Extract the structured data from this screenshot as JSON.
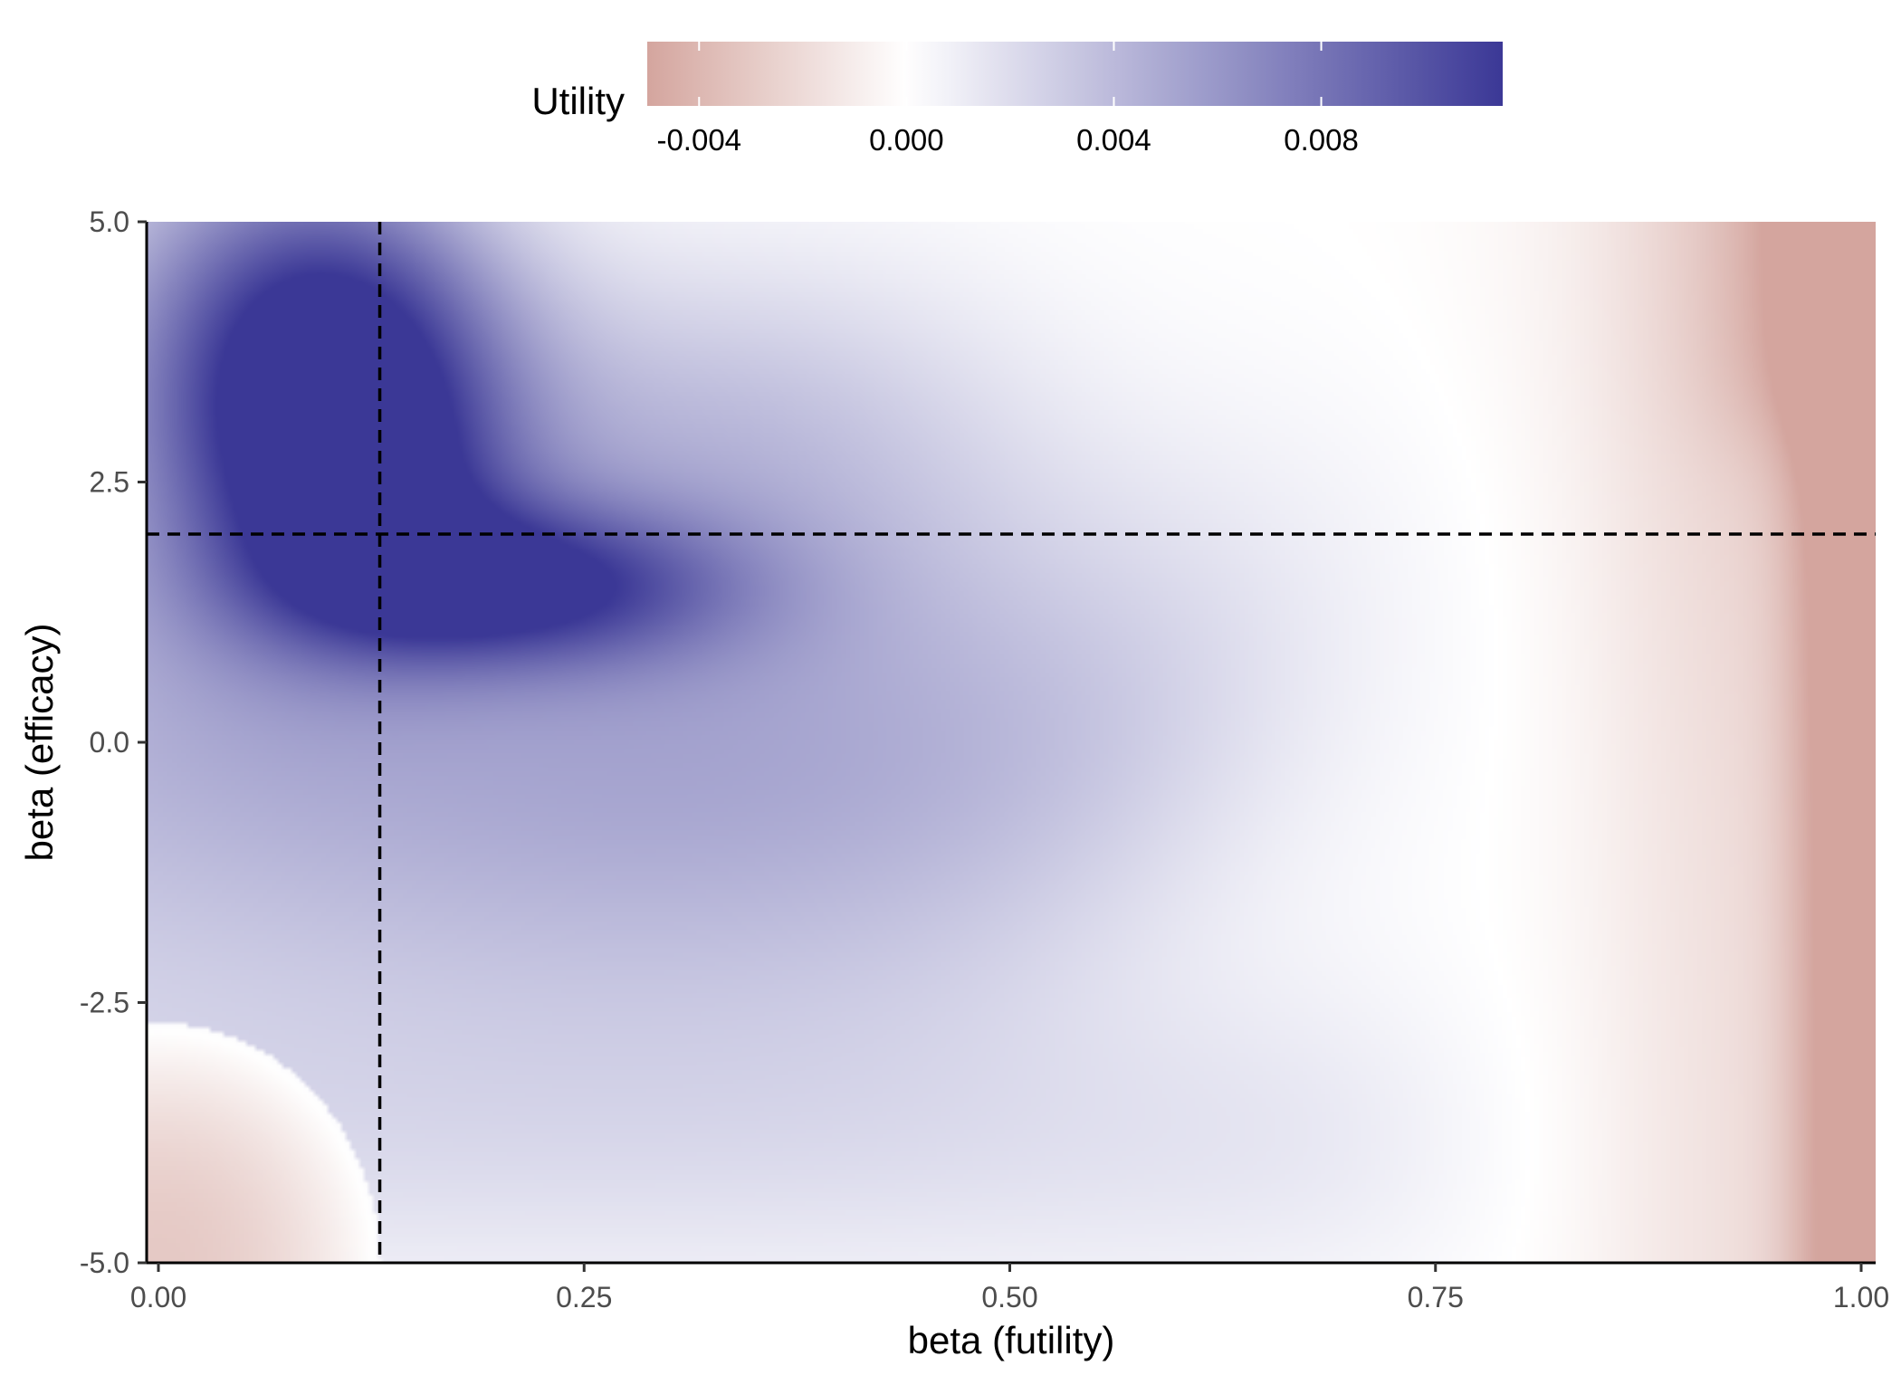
{
  "chart_data": {
    "type": "heatmap",
    "title": "",
    "xlabel": "beta (futility)",
    "ylabel": "beta (efficacy)",
    "xlim": [
      0,
      1
    ],
    "ylim": [
      -5,
      5
    ],
    "x_ticks": [
      0,
      0.25,
      0.5,
      0.75,
      1
    ],
    "x_tick_labels": [
      "0.00",
      "0.25",
      "0.50",
      "0.75",
      "1.00"
    ],
    "y_ticks": [
      -5,
      -2.5,
      0,
      2.5,
      5
    ],
    "y_tick_labels": [
      "-5.0",
      "-2.5",
      "0.0",
      "2.5",
      "5.0"
    ],
    "grid": false,
    "legend": {
      "title": "Utility",
      "position": "top",
      "range": [
        -0.005,
        0.0115
      ],
      "ticks": [
        -0.004,
        0,
        0.004,
        0.008
      ],
      "tick_labels": [
        "-0.004",
        "0.000",
        "0.004",
        "0.008"
      ],
      "colors": {
        "low": "#d4a59e",
        "mid": "#ffffff",
        "high": "#3b3896"
      }
    },
    "reference_lines": {
      "vertical_x": 0.13,
      "horizontal_y": 2
    },
    "hotspots": [
      {
        "x": 0.11,
        "y": 3.8,
        "value": 0.0113
      },
      {
        "x": 0.21,
        "y": 1.5,
        "value": 0.0115
      },
      {
        "x": 0.12,
        "y": 2.2,
        "value": 0.0105
      },
      {
        "x": 0.98,
        "y": 0,
        "value": -0.0045
      },
      {
        "x": 0.02,
        "y": -4.5,
        "value": -0.003
      }
    ]
  }
}
